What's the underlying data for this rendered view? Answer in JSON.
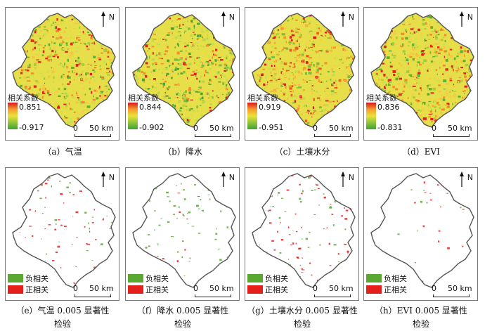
{
  "map_panels": [
    {
      "caption": "（a）气温",
      "legend_title": "相关系数",
      "max": "0.851",
      "min": "-0.917"
    },
    {
      "caption": "（b）降水",
      "legend_title": "相关系数",
      "max": "0.844",
      "min": "-0.902"
    },
    {
      "caption": "（c）土壤水分",
      "legend_title": "相关系数",
      "max": "0.919",
      "min": "-0.951"
    },
    {
      "caption": "（d）EVI",
      "legend_title": "相关系数",
      "max": "0.836",
      "min": "-0.831"
    },
    {
      "caption_line1": "（e）气温 0.005 显著性",
      "caption_line2": "检验"
    },
    {
      "caption_line1": "（f）降水 0.005 显著性",
      "caption_line2": "检验"
    },
    {
      "caption_line1": "（g）土壤水分 0.005 显著性",
      "caption_line2": "检验"
    },
    {
      "caption_line1": "（h）EVI 0.005 显著性",
      "caption_line2": "检验"
    }
  ],
  "north_label": "N",
  "scale": {
    "zero": "0",
    "fifty": "50 km"
  },
  "significance_legend": {
    "negative": "负相关",
    "positive": "正相关"
  },
  "colors": {
    "ramp_high": "#d7191c",
    "ramp_mid": "#e9e33a",
    "ramp_low": "#3ea234",
    "neg_color": "#5aa832",
    "pos_color": "#e3201b",
    "outline": "#555555"
  }
}
